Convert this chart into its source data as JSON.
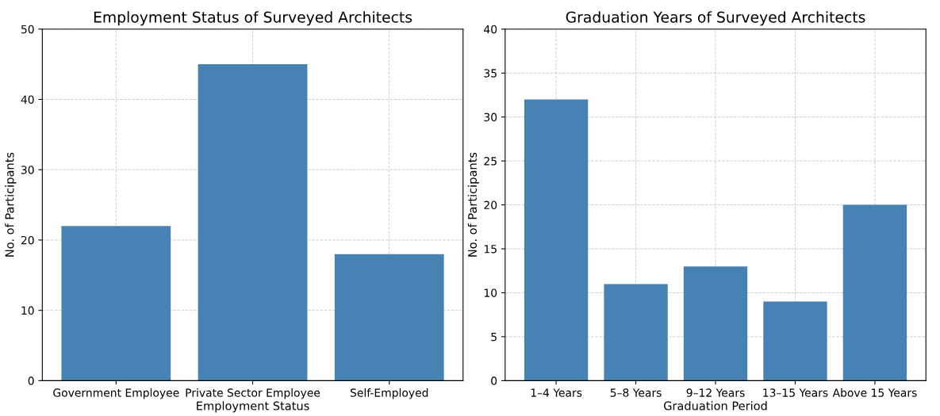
{
  "chart_data": [
    {
      "type": "bar",
      "title": "Employment Status of Surveyed Architects",
      "xlabel": "Employment Status",
      "ylabel": "No. of Participants",
      "categories": [
        "Government Employee",
        "Private Sector Employee",
        "Self-Employed"
      ],
      "values": [
        22,
        45,
        18
      ],
      "color": "#4682b4",
      "ylim": [
        0,
        50
      ],
      "yticks": [
        0,
        10,
        20,
        30,
        40,
        50
      ],
      "grid": true
    },
    {
      "type": "bar",
      "title": "Graduation Years of Surveyed Architects",
      "xlabel": "Graduation Period",
      "ylabel": "No. of Participants",
      "categories": [
        "1–4 Years",
        "5–8 Years",
        "9–12 Years",
        "13–15 Years",
        "Above 15 Years"
      ],
      "values": [
        32,
        11,
        13,
        9,
        20
      ],
      "color": "#4682b4",
      "ylim": [
        0,
        40
      ],
      "yticks": [
        0,
        5,
        10,
        15,
        20,
        25,
        30,
        35,
        40
      ],
      "grid": true
    }
  ]
}
